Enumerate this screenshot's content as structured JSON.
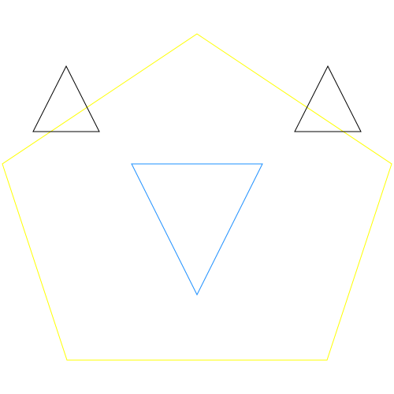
{
  "canvas": {
    "background": "#ffffff"
  },
  "shapes": {
    "pentagon": {
      "kind": "pentagon",
      "stroke_color": "#ffff00"
    },
    "left_triangle": {
      "kind": "triangle",
      "orientation": "up",
      "stroke_color": "#000000"
    },
    "right_triangle": {
      "kind": "triangle",
      "orientation": "up",
      "stroke_color": "#000000"
    },
    "center_triangle": {
      "kind": "triangle",
      "orientation": "down",
      "stroke_color": "#1e90ff"
    }
  }
}
